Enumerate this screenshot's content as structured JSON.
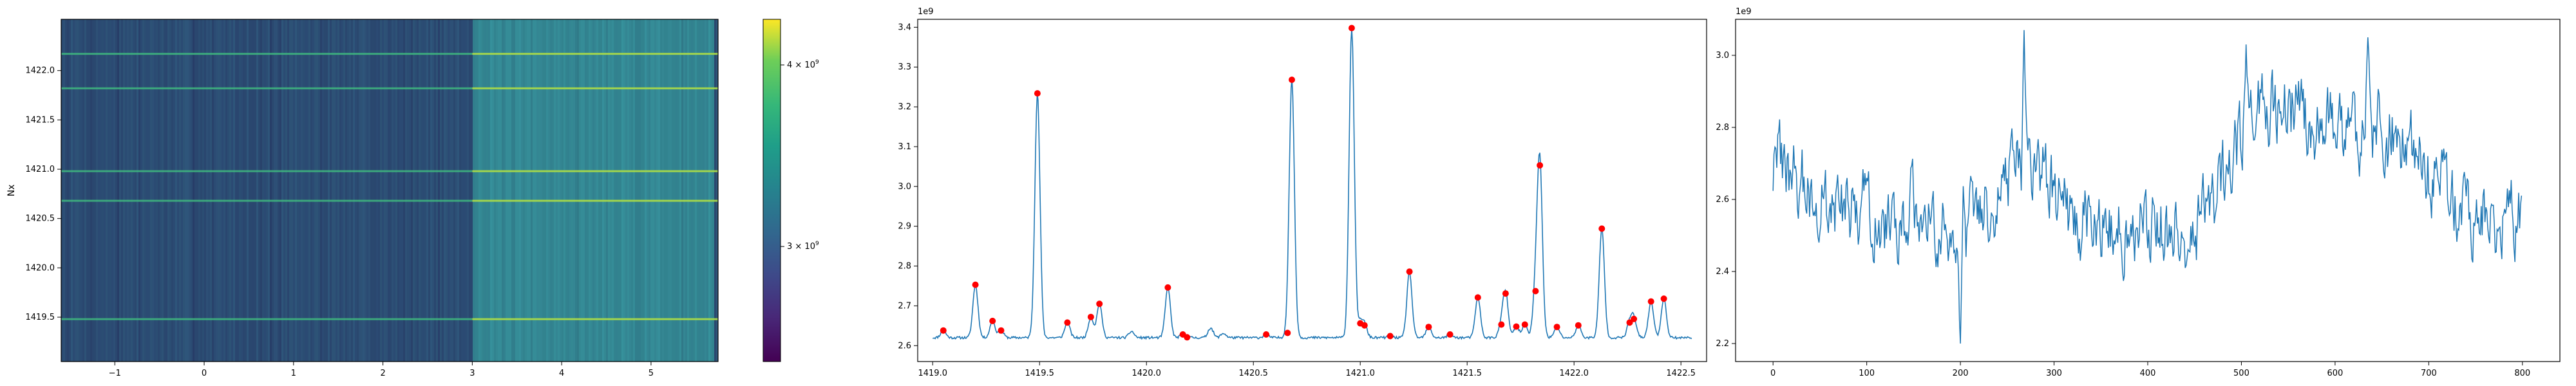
{
  "chart_data": [
    {
      "type": "heatmap",
      "title": "",
      "xlabel": "",
      "ylabel": "Nx",
      "xlim": [
        -1.6,
        5.75
      ],
      "ylim": [
        1419.05,
        1422.52
      ],
      "xticks": [
        -1,
        0,
        1,
        2,
        3,
        4,
        5
      ],
      "yticks": [
        1419.5,
        1420.0,
        1420.5,
        1421.0,
        1421.5,
        1422.0
      ],
      "colormap": "viridis",
      "bright_row_values": [
        1419.48,
        1420.68,
        1420.98,
        1421.82,
        1422.17
      ],
      "high_band_x": [
        3.0,
        5.7
      ],
      "colorbar": {
        "scale": "log",
        "range": [
          2500000000.0,
          4300000000.0
        ],
        "ticks": [
          {
            "value": 3000000000.0,
            "label_base": "3 × 10",
            "label_exp": "9"
          },
          {
            "value": 4000000000.0,
            "label_base": "4 × 10",
            "label_exp": "9"
          }
        ]
      }
    },
    {
      "type": "line",
      "title": "",
      "xlabel": "",
      "ylabel": "",
      "offset_label": "1e9",
      "xlim": [
        1418.93,
        1422.62
      ],
      "ylim": [
        2.56,
        3.42
      ],
      "xticks": [
        1419.0,
        1419.5,
        1420.0,
        1420.5,
        1421.0,
        1421.5,
        1422.0,
        1422.5
      ],
      "yticks": [
        2.6,
        2.7,
        2.8,
        2.9,
        3.0,
        3.1,
        3.2,
        3.3,
        3.4
      ],
      "baseline": 2.62,
      "peaks": [
        {
          "x": 1419.05,
          "y": 2.638
        },
        {
          "x": 1419.2,
          "y": 2.753
        },
        {
          "x": 1419.28,
          "y": 2.662
        },
        {
          "x": 1419.32,
          "y": 2.638
        },
        {
          "x": 1419.49,
          "y": 3.234
        },
        {
          "x": 1419.63,
          "y": 2.658
        },
        {
          "x": 1419.74,
          "y": 2.672
        },
        {
          "x": 1419.78,
          "y": 2.705
        },
        {
          "x": 1420.1,
          "y": 2.746
        },
        {
          "x": 1420.17,
          "y": 2.628
        },
        {
          "x": 1420.19,
          "y": 2.621
        },
        {
          "x": 1420.56,
          "y": 2.628
        },
        {
          "x": 1420.66,
          "y": 2.632
        },
        {
          "x": 1420.68,
          "y": 3.268
        },
        {
          "x": 1420.96,
          "y": 3.398
        },
        {
          "x": 1421.0,
          "y": 2.656
        },
        {
          "x": 1421.02,
          "y": 2.651
        },
        {
          "x": 1421.14,
          "y": 2.624
        },
        {
          "x": 1421.23,
          "y": 2.786
        },
        {
          "x": 1421.32,
          "y": 2.647
        },
        {
          "x": 1421.42,
          "y": 2.628
        },
        {
          "x": 1421.55,
          "y": 2.721
        },
        {
          "x": 1421.66,
          "y": 2.653
        },
        {
          "x": 1421.68,
          "y": 2.731
        },
        {
          "x": 1421.73,
          "y": 2.648
        },
        {
          "x": 1421.77,
          "y": 2.653
        },
        {
          "x": 1421.82,
          "y": 2.737
        },
        {
          "x": 1421.84,
          "y": 3.053
        },
        {
          "x": 1421.92,
          "y": 2.647
        },
        {
          "x": 1422.02,
          "y": 2.651
        },
        {
          "x": 1422.13,
          "y": 2.894
        },
        {
          "x": 1422.26,
          "y": 2.658
        },
        {
          "x": 1422.28,
          "y": 2.667
        },
        {
          "x": 1422.36,
          "y": 2.711
        },
        {
          "x": 1422.42,
          "y": 2.718
        }
      ],
      "minor_bumps": [
        {
          "x": 1419.93,
          "y": 2.636
        },
        {
          "x": 1420.3,
          "y": 2.645
        },
        {
          "x": 1420.36,
          "y": 2.631
        }
      ]
    },
    {
      "type": "line",
      "title": "",
      "xlabel": "",
      "ylabel": "",
      "offset_label": "1e9",
      "xlim": [
        -40,
        840
      ],
      "ylim": [
        2.15,
        3.1
      ],
      "xticks": [
        0,
        100,
        200,
        300,
        400,
        500,
        600,
        700,
        800
      ],
      "yticks": [
        2.2,
        2.4,
        2.6,
        2.8,
        3.0
      ],
      "n_points": 800,
      "trend_anchors": [
        [
          0,
          2.71
        ],
        [
          30,
          2.64
        ],
        [
          60,
          2.56
        ],
        [
          90,
          2.59
        ],
        [
          130,
          2.5
        ],
        [
          150,
          2.6
        ],
        [
          180,
          2.5
        ],
        [
          200,
          2.48
        ],
        [
          230,
          2.58
        ],
        [
          260,
          2.68
        ],
        [
          290,
          2.66
        ],
        [
          320,
          2.55
        ],
        [
          360,
          2.52
        ],
        [
          400,
          2.55
        ],
        [
          440,
          2.48
        ],
        [
          470,
          2.58
        ],
        [
          500,
          2.78
        ],
        [
          530,
          2.86
        ],
        [
          560,
          2.85
        ],
        [
          600,
          2.8
        ],
        [
          640,
          2.8
        ],
        [
          670,
          2.75
        ],
        [
          700,
          2.66
        ],
        [
          730,
          2.58
        ],
        [
          760,
          2.55
        ],
        [
          790,
          2.55
        ],
        [
          800,
          2.57
        ]
      ],
      "noise_amplitude": 0.09,
      "extremes": [
        {
          "x": 200,
          "y": 2.2
        },
        {
          "x": 268,
          "y": 3.07
        },
        {
          "x": 635,
          "y": 3.05
        },
        {
          "x": 505,
          "y": 3.03
        }
      ]
    }
  ]
}
